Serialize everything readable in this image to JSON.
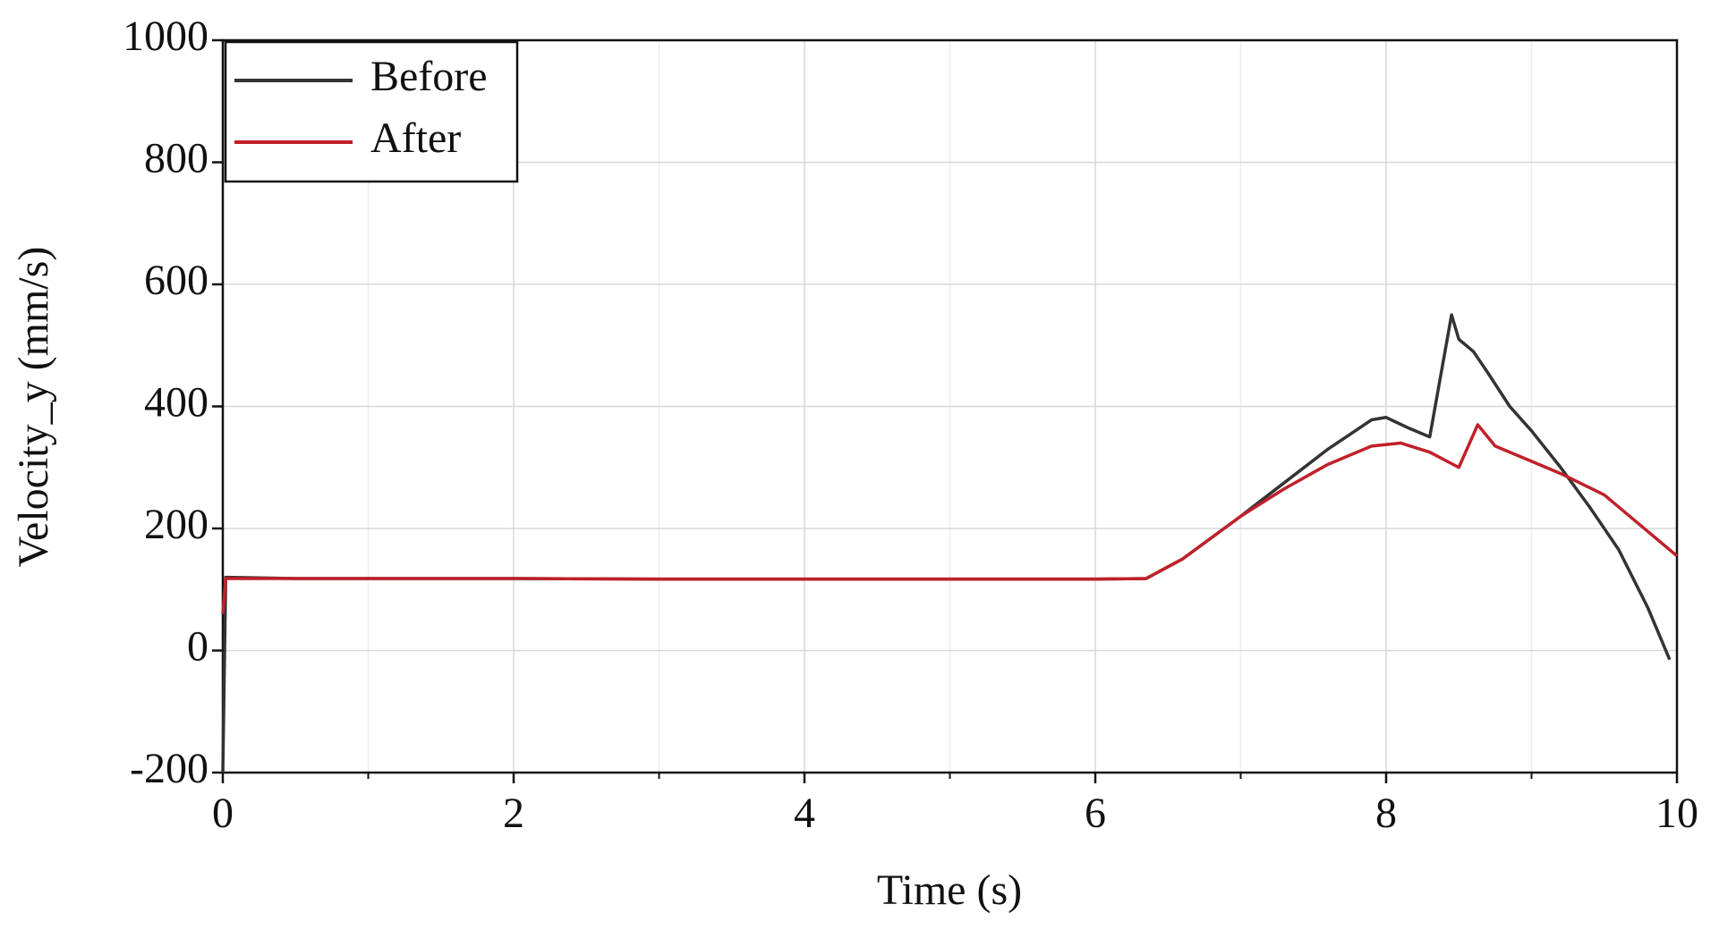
{
  "chart_data": {
    "type": "line",
    "xlabel": "Time (s)",
    "ylabel": "Velocity_y (mm/s)",
    "xlim": [
      0,
      10
    ],
    "ylim": [
      -200,
      1000
    ],
    "xticks": [
      0,
      2,
      4,
      6,
      8,
      10
    ],
    "xminorticks": [
      1,
      3,
      5,
      7,
      9
    ],
    "yticks": [
      -200,
      0,
      200,
      400,
      600,
      800,
      1000
    ],
    "grid": true,
    "legend": "upper left",
    "series": [
      {
        "name": "Before",
        "color": "#333333",
        "x": [
          0,
          0.02,
          0.5,
          1,
          2,
          3,
          4,
          5,
          6,
          6.35,
          6.6,
          7,
          7.3,
          7.6,
          7.9,
          8,
          8.15,
          8.3,
          8.45,
          8.5,
          8.6,
          8.7,
          8.85,
          9.0,
          9.2,
          9.4,
          9.6,
          9.8,
          9.95
        ],
        "values": [
          -200,
          120,
          118,
          118,
          118,
          117,
          117,
          117,
          117,
          118,
          150,
          220,
          275,
          330,
          378,
          382,
          365,
          350,
          550,
          510,
          490,
          455,
          400,
          360,
          300,
          235,
          165,
          70,
          -15
        ]
      },
      {
        "name": "After",
        "color": "#c0202a",
        "x": [
          0,
          0.02,
          0.5,
          1,
          2,
          3,
          4,
          5,
          6,
          6.35,
          6.6,
          7,
          7.3,
          7.6,
          7.9,
          8.1,
          8.3,
          8.5,
          8.63,
          8.75,
          9.0,
          9.2,
          9.5,
          9.75,
          10
        ],
        "values": [
          60,
          118,
          118,
          118,
          118,
          117,
          117,
          117,
          117,
          118,
          150,
          220,
          265,
          305,
          335,
          340,
          325,
          300,
          370,
          335,
          310,
          290,
          255,
          205,
          155
        ]
      }
    ]
  }
}
